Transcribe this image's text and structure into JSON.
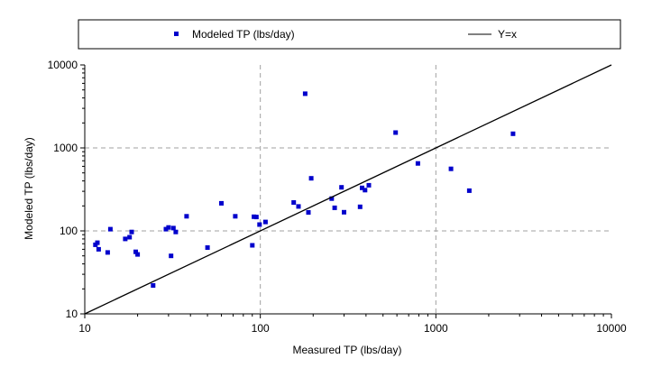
{
  "chart_data": {
    "type": "scatter",
    "xlabel": "Measured TP (lbs/day)",
    "ylabel": "Modeled TP (lbs/day)",
    "x_scale": "log",
    "y_scale": "log",
    "xlim": [
      10,
      10000
    ],
    "ylim": [
      10,
      10000
    ],
    "x_ticks": [
      "10",
      "100",
      "1000",
      "10000"
    ],
    "y_ticks": [
      "10",
      "100",
      "1000",
      "10000"
    ],
    "grid": true,
    "legend_position": "top",
    "series": [
      {
        "name": "Modeled TP (lbs/day)",
        "kind": "points",
        "marker": "square",
        "color": "#0000cc",
        "points": [
          [
            11.5,
            68
          ],
          [
            11.8,
            72
          ],
          [
            12.0,
            60
          ],
          [
            13.5,
            55
          ],
          [
            14.0,
            105
          ],
          [
            17.0,
            80
          ],
          [
            18.0,
            84
          ],
          [
            18.5,
            97
          ],
          [
            19.5,
            56
          ],
          [
            20.0,
            52
          ],
          [
            24.5,
            22
          ],
          [
            29.0,
            105
          ],
          [
            30.0,
            110
          ],
          [
            31.0,
            50
          ],
          [
            32.0,
            108
          ],
          [
            33.0,
            97
          ],
          [
            38.0,
            150
          ],
          [
            50.0,
            63
          ],
          [
            60.0,
            215
          ],
          [
            72.0,
            150
          ],
          [
            90.0,
            67
          ],
          [
            92.0,
            148
          ],
          [
            95.0,
            147
          ],
          [
            99.0,
            119
          ],
          [
            107.0,
            128
          ],
          [
            155.0,
            220
          ],
          [
            165.0,
            197
          ],
          [
            180.0,
            4500
          ],
          [
            188.0,
            167
          ],
          [
            195.0,
            430
          ],
          [
            255.0,
            245
          ],
          [
            265.0,
            190
          ],
          [
            290.0,
            335
          ],
          [
            300.0,
            168
          ],
          [
            370.0,
            195
          ],
          [
            380.0,
            330
          ],
          [
            395.0,
            310
          ],
          [
            415.0,
            355
          ],
          [
            590.0,
            1530
          ],
          [
            790.0,
            650
          ],
          [
            1220.0,
            560
          ],
          [
            1550.0,
            305
          ],
          [
            2750.0,
            1480
          ]
        ]
      },
      {
        "name": "Y=x",
        "kind": "line",
        "color": "#000000",
        "points": [
          [
            10,
            10
          ],
          [
            10000,
            10000
          ]
        ]
      }
    ]
  }
}
